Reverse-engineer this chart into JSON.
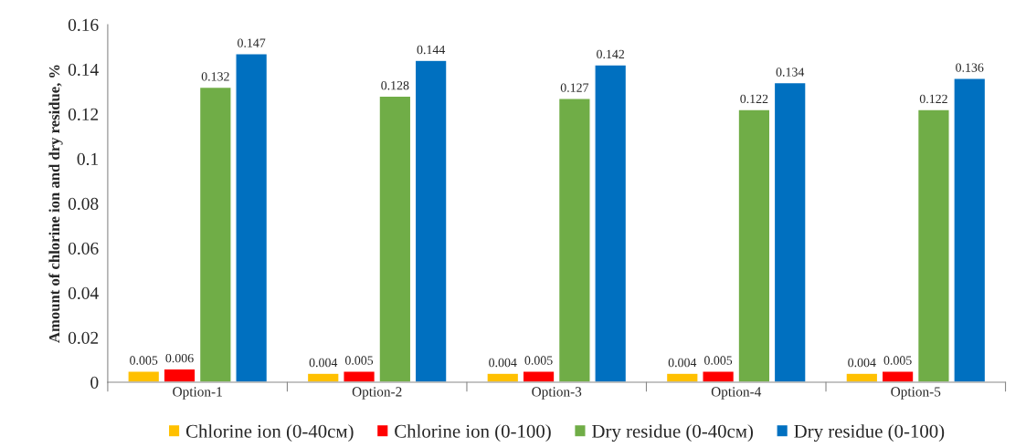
{
  "chart_data": {
    "type": "bar",
    "ylabel": "Amount of chlorine ion and dry residue, %",
    "categories": [
      "Option-1",
      "Option-2",
      "Option-3",
      "Option-4",
      "Option-5"
    ],
    "series": [
      {
        "name": "Chlorine ion (0-40см)",
        "color": "#ffc000",
        "values": [
          0.005,
          0.004,
          0.004,
          0.004,
          0.004
        ]
      },
      {
        "name": "Chlorine ion (0-100)",
        "color": "#ff0000",
        "values": [
          0.006,
          0.005,
          0.005,
          0.005,
          0.005
        ]
      },
      {
        "name": "Dry residue (0-40см)",
        "color": "#70ad47",
        "values": [
          0.132,
          0.128,
          0.127,
          0.122,
          0.122
        ]
      },
      {
        "name": "Dry residue (0-100)",
        "color": "#0070c0",
        "values": [
          0.147,
          0.144,
          0.142,
          0.134,
          0.136
        ]
      }
    ],
    "ylim": [
      0,
      0.16
    ],
    "yticks": [
      0,
      0.02,
      0.04,
      0.06,
      0.08,
      0.1,
      0.12,
      0.14,
      0.16
    ],
    "data_labels": true,
    "legend": "bottom",
    "grid": false
  }
}
